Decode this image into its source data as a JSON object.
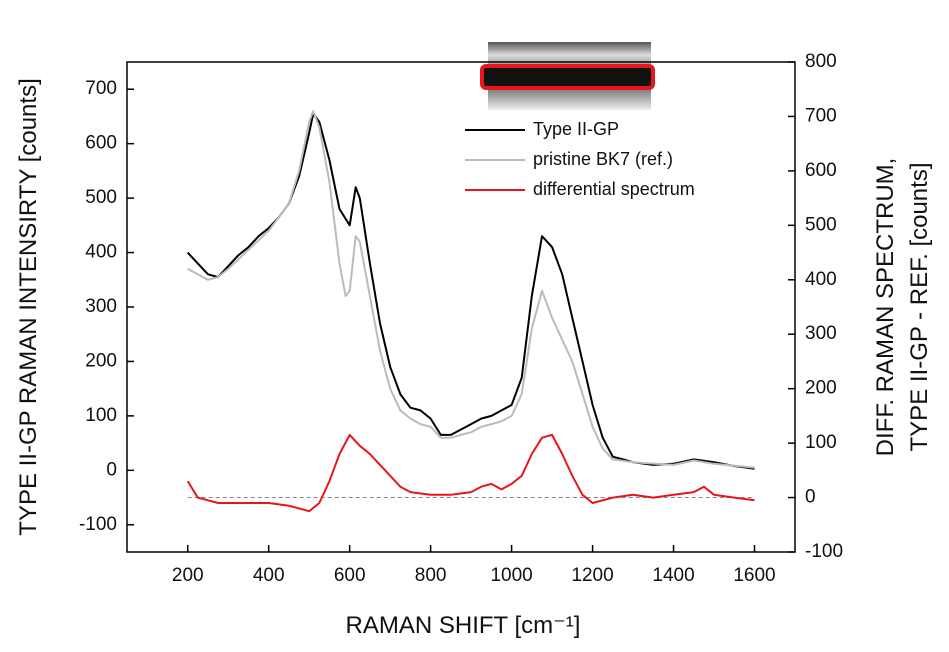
{
  "chart_data": {
    "type": "line",
    "x_label": "RAMAN SHIFT [cm⁻¹]",
    "y_label": "TYPE II-GP RAMAN INTENSIRTY [counts]",
    "y2_label": [
      "DIFF. RAMAN SPECTRUM,",
      "TYPE II-GP - REF. [counts]"
    ],
    "xlim": [
      50,
      1700
    ],
    "xticks": [
      200,
      400,
      600,
      800,
      1000,
      1200,
      1400,
      1600
    ],
    "ylim": [
      -150,
      750
    ],
    "yticks": [
      -100,
      0,
      100,
      200,
      300,
      400,
      500,
      600,
      700
    ],
    "y2lim": [
      -100,
      800
    ],
    "y2ticks": [
      -100,
      0,
      100,
      200,
      300,
      400,
      500,
      600,
      700,
      800
    ],
    "hlines": [
      {
        "axis": "y2",
        "value": 0,
        "color": "#888888"
      }
    ],
    "series": [
      {
        "name": "Type II-GP",
        "color": "#000000",
        "x": [
          200,
          225,
          250,
          275,
          300,
          325,
          350,
          375,
          400,
          425,
          450,
          475,
          500,
          510,
          525,
          550,
          575,
          600,
          615,
          625,
          650,
          675,
          700,
          725,
          750,
          775,
          800,
          825,
          850,
          875,
          900,
          925,
          950,
          975,
          1000,
          1025,
          1050,
          1075,
          1100,
          1125,
          1150,
          1175,
          1200,
          1225,
          1250,
          1275,
          1300,
          1350,
          1400,
          1450,
          1500,
          1550,
          1600
        ],
        "values": [
          400,
          380,
          360,
          355,
          375,
          395,
          410,
          430,
          445,
          465,
          490,
          540,
          620,
          655,
          640,
          570,
          480,
          450,
          520,
          500,
          380,
          270,
          190,
          140,
          115,
          110,
          95,
          65,
          65,
          75,
          85,
          95,
          100,
          110,
          120,
          170,
          320,
          430,
          410,
          360,
          280,
          200,
          120,
          60,
          25,
          20,
          15,
          10,
          12,
          20,
          15,
          8,
          3
        ]
      },
      {
        "name": "pristine BK7 (ref.)",
        "color": "#bbbbbb",
        "x": [
          200,
          225,
          250,
          275,
          300,
          350,
          400,
          450,
          475,
          500,
          510,
          525,
          550,
          575,
          590,
          600,
          615,
          625,
          650,
          675,
          700,
          725,
          750,
          775,
          800,
          825,
          850,
          875,
          900,
          925,
          950,
          975,
          1000,
          1025,
          1050,
          1075,
          1100,
          1125,
          1150,
          1175,
          1200,
          1225,
          1250,
          1300,
          1400,
          1450,
          1500,
          1600
        ],
        "values": [
          370,
          360,
          350,
          355,
          370,
          405,
          440,
          490,
          550,
          640,
          660,
          630,
          530,
          380,
          320,
          330,
          430,
          420,
          320,
          220,
          150,
          110,
          95,
          85,
          80,
          60,
          60,
          65,
          70,
          80,
          85,
          90,
          100,
          140,
          260,
          330,
          280,
          240,
          200,
          140,
          80,
          40,
          20,
          15,
          10,
          18,
          12,
          5
        ]
      },
      {
        "name": "differential spectrum",
        "color": "#e8161b",
        "axis": "y2",
        "x": [
          200,
          225,
          250,
          275,
          300,
          350,
          400,
          450,
          500,
          525,
          550,
          575,
          600,
          625,
          650,
          675,
          700,
          725,
          750,
          800,
          850,
          900,
          925,
          950,
          975,
          1000,
          1025,
          1050,
          1075,
          1100,
          1125,
          1150,
          1175,
          1200,
          1250,
          1300,
          1350,
          1400,
          1450,
          1475,
          1500,
          1550,
          1600
        ],
        "values": [
          30,
          0,
          -5,
          -10,
          -10,
          -10,
          -10,
          -15,
          -25,
          -10,
          30,
          80,
          115,
          95,
          80,
          60,
          40,
          20,
          10,
          5,
          5,
          10,
          20,
          25,
          15,
          25,
          40,
          80,
          110,
          115,
          80,
          40,
          5,
          -10,
          0,
          5,
          0,
          5,
          10,
          20,
          5,
          0,
          -5
        ]
      }
    ]
  }
}
